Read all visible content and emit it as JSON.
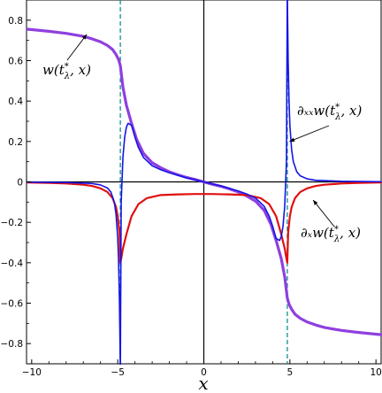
{
  "chart_data": {
    "type": "line",
    "xlabel": "x",
    "xlim": [
      -10.3,
      10.3
    ],
    "ylim": [
      -0.9,
      0.9
    ],
    "x_ticks": [
      -10,
      -5,
      0,
      5,
      10
    ],
    "x_tick_labels": [
      "−10",
      "−5",
      "0",
      "5",
      "10"
    ],
    "y_ticks": [
      0.8,
      0.6,
      0.4,
      0.2,
      0,
      -0.2,
      -0.4,
      -0.6,
      -0.8
    ],
    "y_tick_labels": [
      "0.8",
      "0.6",
      "0.4",
      "0.2",
      "0",
      "−0.2",
      "−0.4",
      "−0.6",
      "−0.8"
    ],
    "vertical_lines": [
      -4.85,
      4.85
    ],
    "vertical_line_color": "#0e8f8f",
    "annotations": [
      {
        "label": "w",
        "super": "*",
        "sub": "λ",
        "suffix": ", x)",
        "prefix": "(t",
        "target": [
          -6.8,
          0.73
        ]
      },
      {
        "label": "∂ₓₓw",
        "super": "*",
        "sub": "λ",
        "suffix": ", x)",
        "prefix": "(t",
        "target": [
          4.98,
          0.2
        ]
      },
      {
        "label": "∂ₓw",
        "super": "*",
        "sub": "λ",
        "suffix": ", x)",
        "prefix": "(t",
        "target": [
          6.35,
          -0.09
        ]
      }
    ],
    "series": [
      {
        "color": "#8f3fdf",
        "width": 3.2,
        "x": [
          -10.3,
          -9,
          -8,
          -7,
          -6.5,
          -6,
          -5.6,
          -5.3,
          -5.1,
          -4.95,
          -4.85,
          -4.7,
          -4.5,
          -4.2,
          -3.9,
          -3.5,
          -3,
          -2.5,
          -2,
          -1.5,
          -1,
          -0.5,
          0,
          0.5,
          1,
          1.5,
          2,
          2.5,
          3,
          3.5,
          3.9,
          4.2,
          4.5,
          4.7,
          4.85,
          4.95,
          5.1,
          5.3,
          5.6,
          6,
          6.5,
          7,
          8,
          9,
          10.3
        ],
        "y": [
          0.756,
          0.745,
          0.735,
          0.72,
          0.708,
          0.693,
          0.675,
          0.655,
          0.63,
          0.605,
          0.575,
          0.47,
          0.38,
          0.29,
          0.21,
          0.14,
          0.095,
          0.07,
          0.05,
          0.035,
          0.022,
          0.012,
          0,
          -0.012,
          -0.022,
          -0.035,
          -0.05,
          -0.07,
          -0.095,
          -0.14,
          -0.21,
          -0.29,
          -0.38,
          -0.47,
          -0.575,
          -0.605,
          -0.63,
          -0.655,
          -0.675,
          -0.693,
          -0.708,
          -0.72,
          -0.735,
          -0.745,
          -0.756
        ]
      },
      {
        "color": "#e01010",
        "width": 2.2,
        "x": [
          -10.3,
          -9,
          -8,
          -7,
          -6.5,
          -6,
          -5.6,
          -5.3,
          -5.1,
          -5,
          -4.9,
          -4.85,
          -4.8,
          -4.7,
          -4.5,
          -4.2,
          -3.8,
          -3.3,
          -2.5,
          -1.5,
          -0.5,
          0,
          0.5,
          1.5,
          2.5,
          3.3,
          3.8,
          4.2,
          4.5,
          4.7,
          4.8,
          4.85,
          4.9,
          5,
          5.1,
          5.3,
          5.6,
          6,
          6.5,
          7,
          8,
          9,
          10.3
        ],
        "y": [
          -0.003,
          -0.005,
          -0.008,
          -0.014,
          -0.02,
          -0.032,
          -0.05,
          -0.08,
          -0.125,
          -0.17,
          -0.25,
          -0.4,
          -0.38,
          -0.33,
          -0.26,
          -0.17,
          -0.11,
          -0.08,
          -0.065,
          -0.062,
          -0.06,
          -0.06,
          -0.06,
          -0.062,
          -0.065,
          -0.08,
          -0.11,
          -0.17,
          -0.26,
          -0.33,
          -0.38,
          -0.4,
          -0.25,
          -0.17,
          -0.125,
          -0.08,
          -0.05,
          -0.032,
          -0.02,
          -0.014,
          -0.008,
          -0.005,
          -0.003
        ]
      },
      {
        "color": "#1515e6",
        "width": 1.6,
        "x": [
          -10.3,
          -8,
          -6.5,
          -6,
          -5.6,
          -5.4,
          -5.2,
          -5.1,
          -5,
          -4.95,
          -4.9,
          -4.87,
          -4.85,
          -4.83,
          -4.8,
          -4.7,
          -4.6,
          -4.5,
          -4.4,
          -4.2,
          -4,
          -3.8,
          -3.5,
          -3,
          -2.5,
          -2,
          -1,
          0,
          1,
          2,
          2.5,
          3,
          3.5,
          3.8,
          4,
          4.2,
          4.4,
          4.5,
          4.6,
          4.7,
          4.8,
          4.83,
          4.85,
          4.87,
          4.9,
          4.95,
          5,
          5.1,
          5.2,
          5.4,
          5.6,
          6,
          6.5,
          8,
          10.3
        ],
        "y": [
          -0.001,
          -0.003,
          -0.008,
          -0.015,
          -0.03,
          -0.05,
          -0.1,
          -0.16,
          -0.28,
          -0.4,
          -0.6,
          -0.8,
          -0.95,
          -0.6,
          -0.1,
          0.12,
          0.22,
          0.27,
          0.29,
          0.28,
          0.22,
          0.17,
          0.12,
          0.08,
          0.06,
          0.045,
          0.02,
          0,
          -0.02,
          -0.045,
          -0.06,
          -0.08,
          -0.12,
          -0.17,
          -0.22,
          -0.28,
          -0.29,
          -0.27,
          -0.22,
          -0.12,
          0.1,
          0.6,
          0.95,
          0.8,
          0.6,
          0.4,
          0.28,
          0.16,
          0.1,
          0.05,
          0.03,
          0.015,
          0.008,
          0.003,
          0.001
        ]
      }
    ]
  }
}
